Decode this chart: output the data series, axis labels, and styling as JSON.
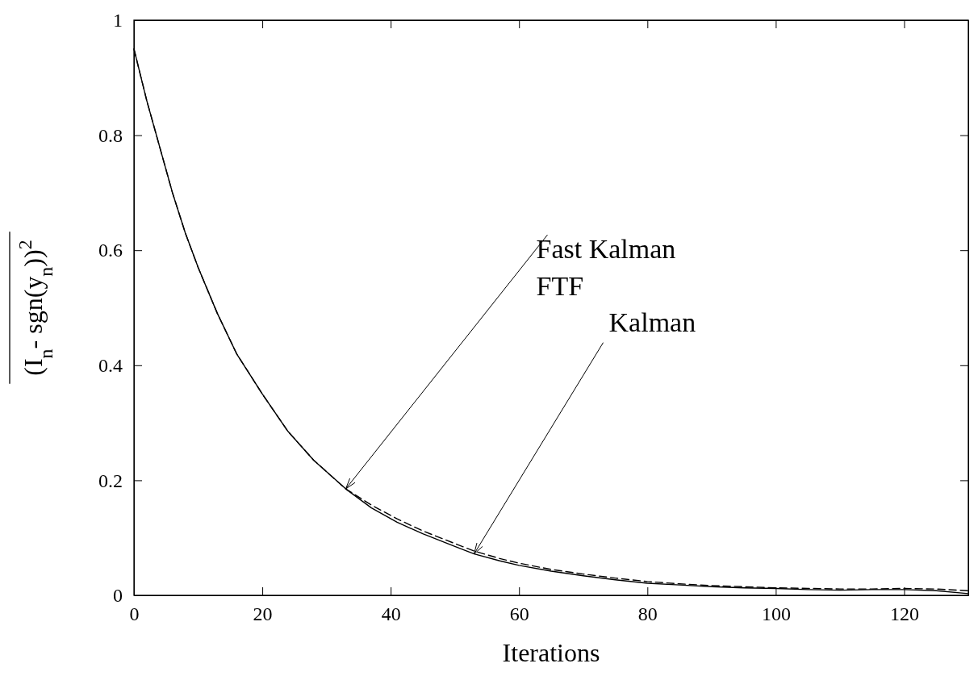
{
  "chart_data": {
    "type": "line",
    "xlabel": "Iterations",
    "ylabel": "(I$_{n}$- sgn(y$_{n}$))$^{2}$",
    "x": [
      0,
      2,
      4,
      6,
      8,
      10,
      13,
      16,
      20,
      24,
      28,
      33,
      37,
      41,
      45,
      50,
      53,
      57,
      60,
      65,
      70,
      75,
      80,
      85,
      90,
      95,
      100,
      105,
      110,
      115,
      120,
      125,
      130
    ],
    "xlim": [
      0,
      130
    ],
    "xticks": [
      0,
      20,
      40,
      60,
      80,
      100,
      120
    ],
    "ylim": [
      0,
      1
    ],
    "yticks": [
      0,
      0.2,
      0.4,
      0.6,
      0.8,
      1
    ],
    "series": [
      {
        "color": "#000000",
        "line_style": "solid",
        "values": [
          0.95,
          0.86,
          0.78,
          0.7,
          0.63,
          0.57,
          0.49,
          0.42,
          0.35,
          0.285,
          0.235,
          0.185,
          0.152,
          0.127,
          0.107,
          0.085,
          0.072,
          0.06,
          0.052,
          0.042,
          0.034,
          0.027,
          0.021,
          0.018,
          0.015,
          0.013,
          0.012,
          0.01,
          0.009,
          0.01,
          0.01,
          0.008,
          0.003
        ]
      },
      {
        "color": "#000000",
        "line_style": "dashed",
        "values": [
          0.95,
          0.86,
          0.78,
          0.7,
          0.63,
          0.57,
          0.49,
          0.42,
          0.35,
          0.285,
          0.235,
          0.185,
          0.157,
          0.133,
          0.112,
          0.09,
          0.077,
          0.064,
          0.056,
          0.045,
          0.037,
          0.03,
          0.024,
          0.02,
          0.017,
          0.015,
          0.013,
          0.012,
          0.011,
          0.011,
          0.012,
          0.011,
          0.008
        ]
      }
    ],
    "annotations": [
      {
        "text": "Fast Kalman",
        "x": 33,
        "y": 0.185
      },
      "FTF",
      {
        "text": "Kalman",
        "x": 53,
        "y": 0.072
      }
    ]
  }
}
